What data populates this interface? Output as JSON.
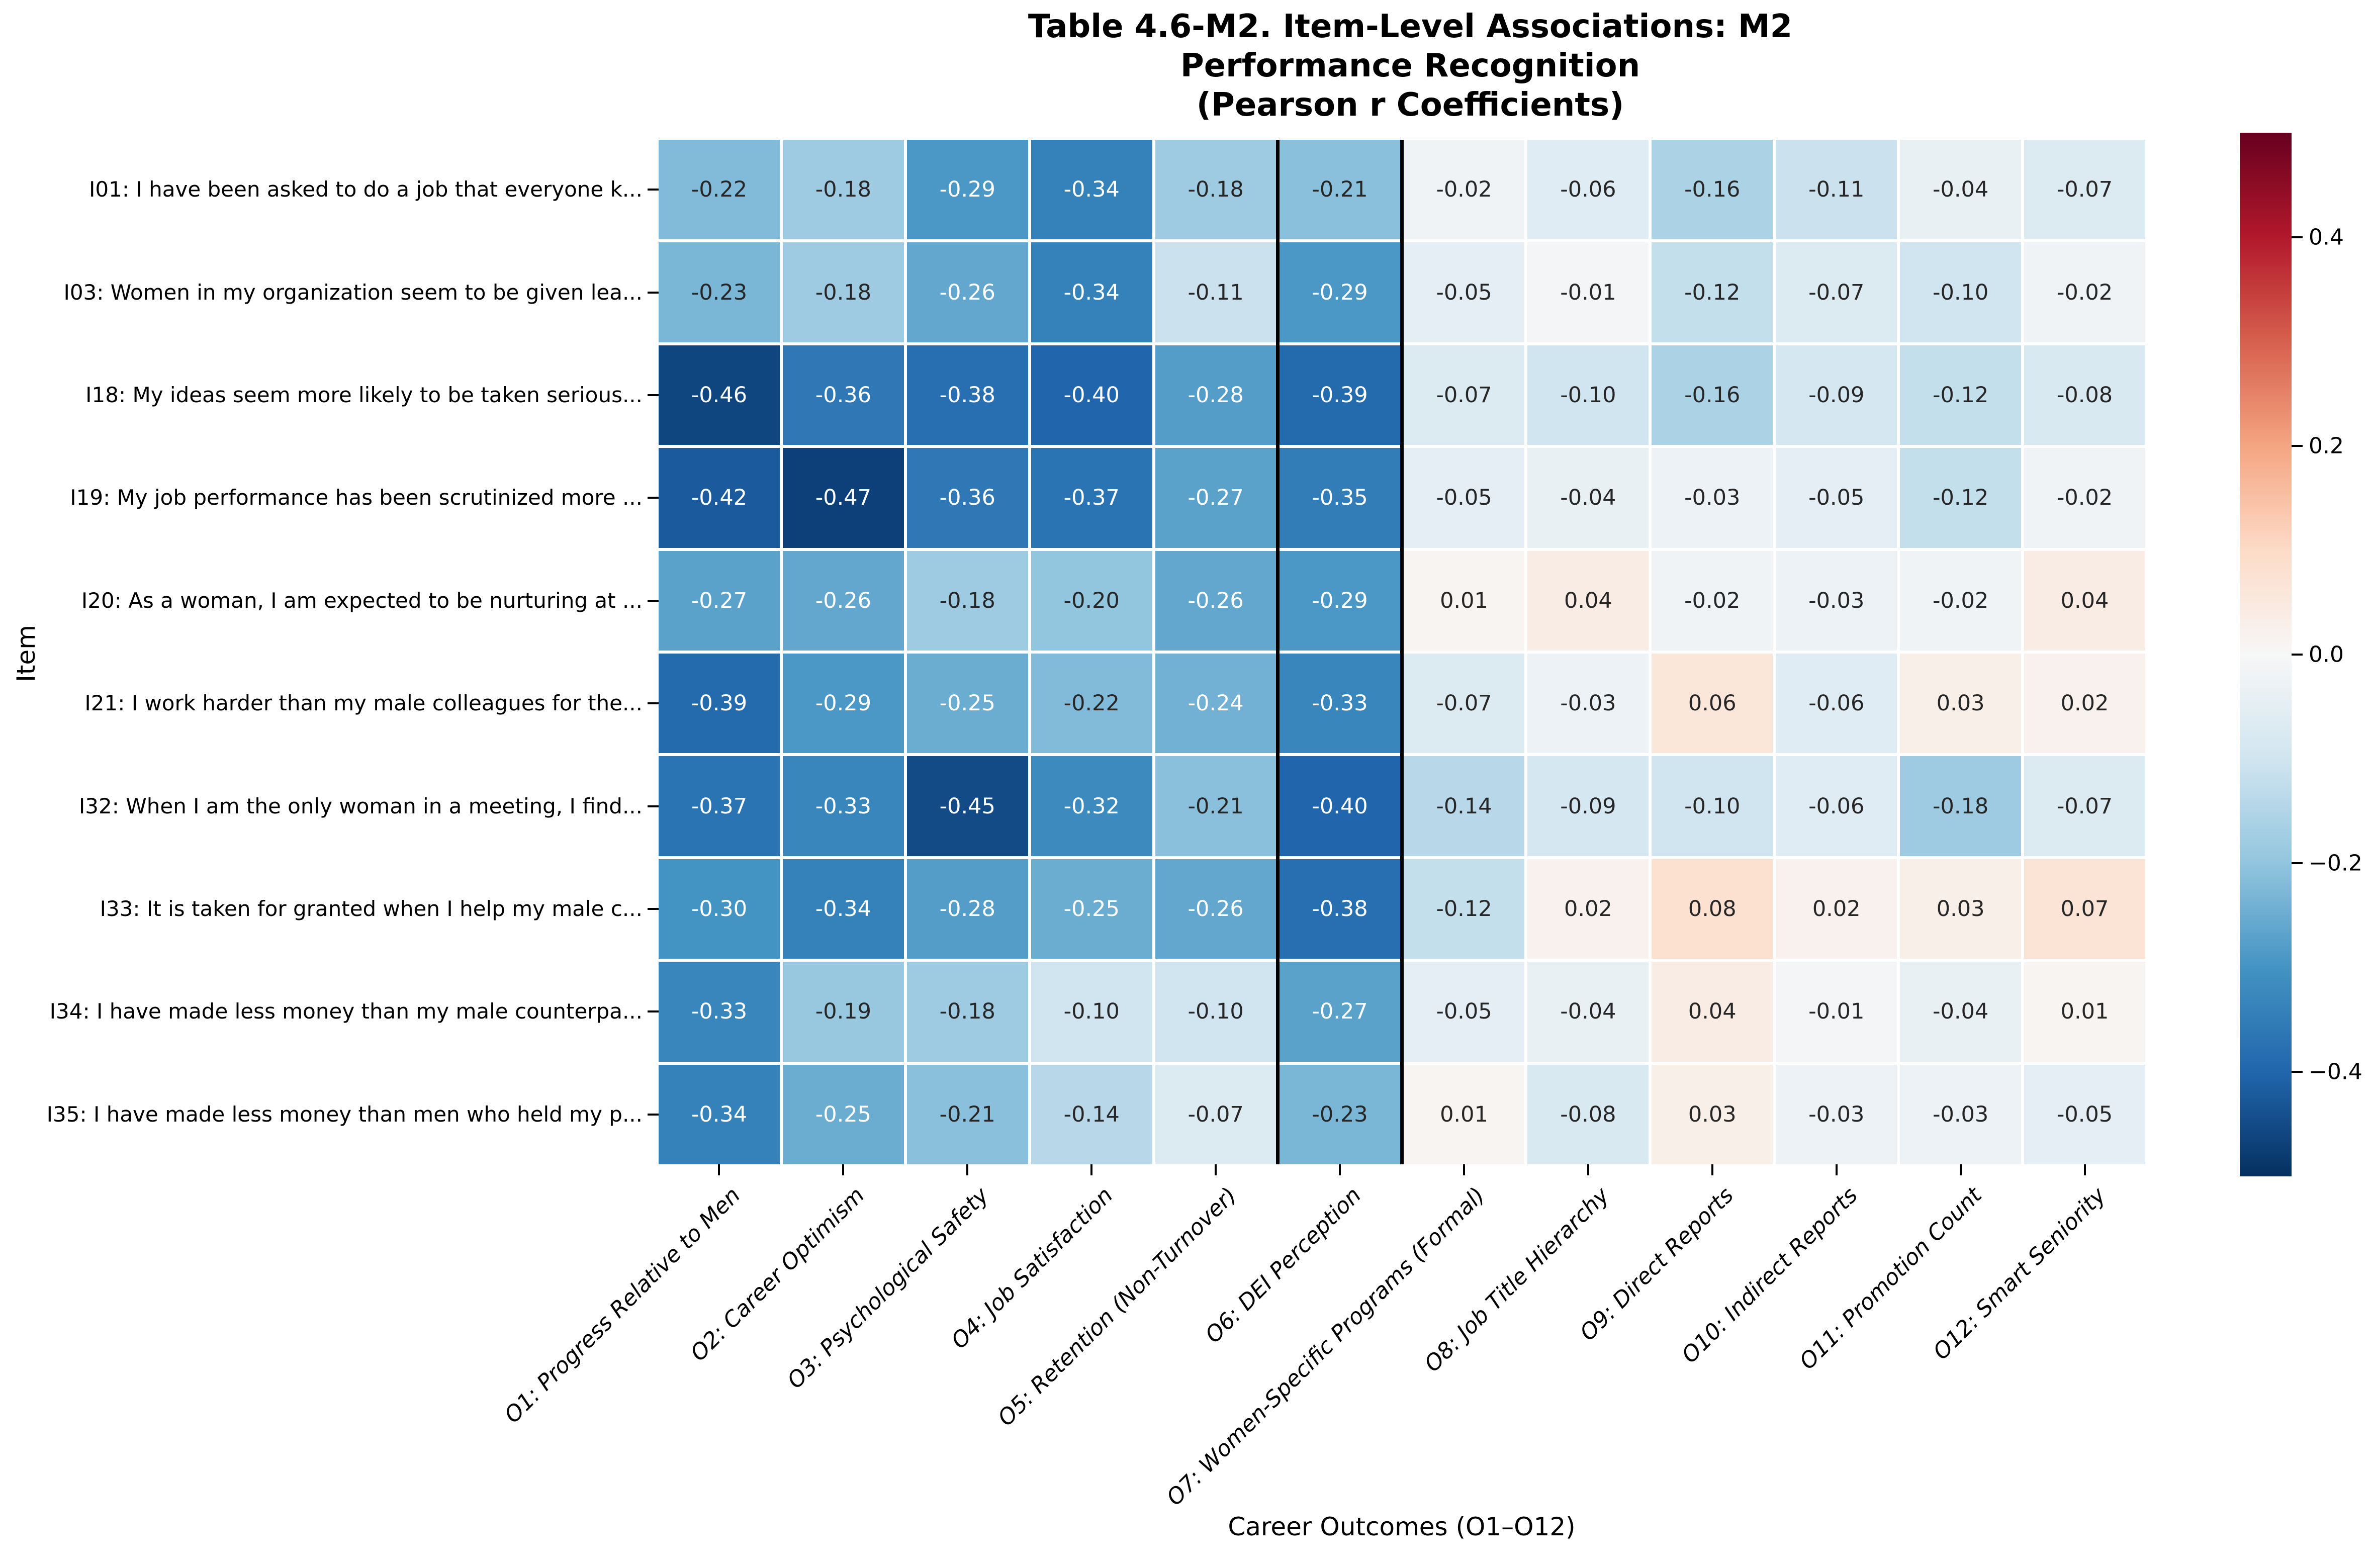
{
  "chart_data": {
    "type": "heatmap",
    "title": "Table 4.6-M2. Item-Level Associations: M2 Performance Recognition\n(Pearson r Coefficients)",
    "title_line1": "Table 4.6-M2. Item-Level Associations: M2 Performance Recognition",
    "title_line2": "(Pearson r Coefficients)",
    "xlabel": "Career Outcomes (O1–O12)",
    "ylabel": "Item",
    "columns": [
      "O1: Progress Relative to Men",
      "O2: Career Optimism",
      "O3: Psychological Safety",
      "O4: Job Satisfaction",
      "O5: Retention (Non-Turnover)",
      "O6: DEI Perception",
      "O7: Women-Specific Programs (Formal)",
      "O8: Job Title Hierarchy",
      "O9: Direct Reports",
      "O10: Indirect Reports",
      "O11: Promotion Count",
      "O12: Smart Seniority"
    ],
    "rows": [
      "I01: I have been asked to do a job that everyone k...",
      "I03: Women in my organization seem to be given lea...",
      "I18: My ideas seem more likely to be taken serious...",
      "I19: My job performance has been scrutinized more ...",
      "I20: As a woman, I am expected to be nurturing at ...",
      "I21: I work harder than my male colleagues for the...",
      "I32: When I am the only woman in a meeting, I find...",
      "I33: It is taken for granted when I help my male c...",
      "I34: I have made less money than my male counterpa...",
      "I35: I have made less money than men who held my p..."
    ],
    "values": [
      [
        -0.22,
        -0.18,
        -0.29,
        -0.34,
        -0.18,
        -0.21,
        -0.02,
        -0.06,
        -0.16,
        -0.11,
        -0.04,
        -0.07
      ],
      [
        -0.23,
        -0.18,
        -0.26,
        -0.34,
        -0.11,
        -0.29,
        -0.05,
        -0.01,
        -0.12,
        -0.07,
        -0.1,
        -0.02
      ],
      [
        -0.46,
        -0.36,
        -0.38,
        -0.4,
        -0.28,
        -0.39,
        -0.07,
        -0.1,
        -0.16,
        -0.09,
        -0.12,
        -0.08
      ],
      [
        -0.42,
        -0.47,
        -0.36,
        -0.37,
        -0.27,
        -0.35,
        -0.05,
        -0.04,
        -0.03,
        -0.05,
        -0.12,
        -0.02
      ],
      [
        -0.27,
        -0.26,
        -0.18,
        -0.2,
        -0.26,
        -0.29,
        0.01,
        0.04,
        -0.02,
        -0.03,
        -0.02,
        0.04
      ],
      [
        -0.39,
        -0.29,
        -0.25,
        -0.22,
        -0.24,
        -0.33,
        -0.07,
        -0.03,
        0.06,
        -0.06,
        0.03,
        0.02
      ],
      [
        -0.37,
        -0.33,
        -0.45,
        -0.32,
        -0.21,
        -0.4,
        -0.14,
        -0.09,
        -0.1,
        -0.06,
        -0.18,
        -0.07
      ],
      [
        -0.3,
        -0.34,
        -0.28,
        -0.25,
        -0.26,
        -0.38,
        -0.12,
        0.02,
        0.08,
        0.02,
        0.03,
        0.07
      ],
      [
        -0.33,
        -0.19,
        -0.18,
        -0.1,
        -0.1,
        -0.27,
        -0.05,
        -0.04,
        0.04,
        -0.01,
        -0.04,
        0.01
      ],
      [
        -0.34,
        -0.25,
        -0.21,
        -0.14,
        -0.07,
        -0.23,
        0.01,
        -0.08,
        0.03,
        -0.03,
        -0.03,
        -0.05
      ]
    ],
    "vmin": -0.5,
    "vmax": 0.5,
    "colormap": "RdBu_r",
    "colormap_anchors": [
      "#053061",
      "#2166ac",
      "#4393c3",
      "#92c5de",
      "#d1e5f0",
      "#f7f7f7",
      "#fddbc7",
      "#f4a582",
      "#d6604d",
      "#b2182b",
      "#67001f"
    ],
    "grid_line_color": "#ffffff",
    "annotation_dark_text_color": "#262626",
    "annotation_light_text_color": "#ffffff",
    "highlight_column_index": 5,
    "highlight_column": "O6: DEI Perception",
    "highlight_border_color": "#000000",
    "legend_position": "right",
    "colorbar_ticks": [
      {
        "label": "0.4",
        "value": 0.4
      },
      {
        "label": "0.2",
        "value": 0.2
      },
      {
        "label": "0.0",
        "value": 0.0
      },
      {
        "label": "−0.2",
        "value": -0.2
      },
      {
        "label": "−0.4",
        "value": -0.4
      }
    ]
  }
}
